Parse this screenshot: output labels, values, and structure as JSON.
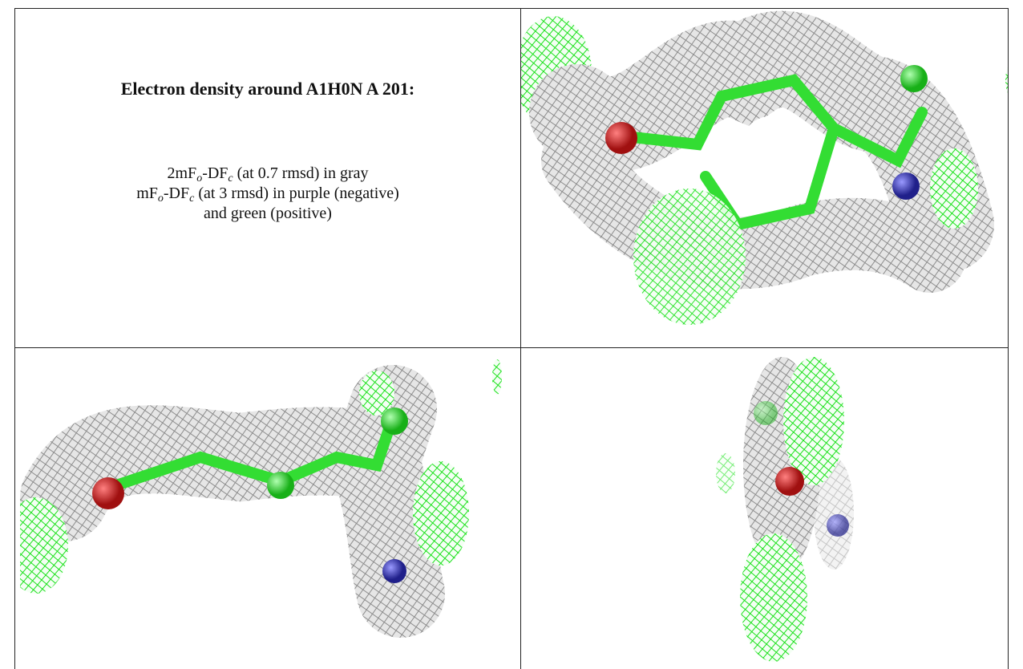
{
  "caption": {
    "title": "Electron density around A1H0N A 201:",
    "lines": [
      [
        "2mF",
        "o",
        "-DF",
        "c",
        " (at 0.7 rmsd) in gray"
      ],
      [
        "mF",
        "o",
        "-DF",
        "c",
        " (at 3 rmsd) in purple (negative)"
      ],
      [
        "and green (positive)"
      ]
    ]
  }
}
